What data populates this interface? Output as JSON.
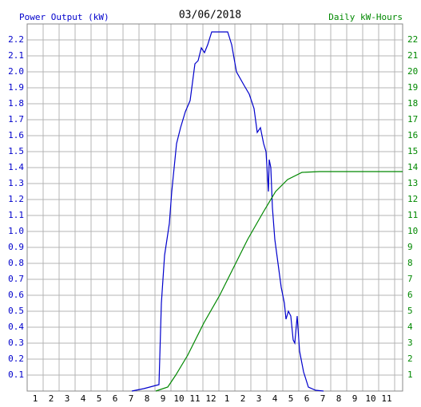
{
  "chart_data": {
    "type": "line",
    "title": "03/06/2018",
    "y_label": "Power Output (kW)",
    "y2_label": "Daily kW-Hours",
    "xlim": [
      0.5,
      24
    ],
    "xticks": [
      1,
      2,
      3,
      4,
      5,
      6,
      7,
      8,
      9,
      10,
      11,
      {
        "value": 12,
        "label": "12"
      },
      {
        "value": 13,
        "label": "1"
      },
      {
        "value": 14,
        "label": "2"
      },
      {
        "value": 15,
        "label": "3"
      },
      {
        "value": 16,
        "label": "4"
      },
      {
        "value": 17,
        "label": "5"
      },
      {
        "value": 18,
        "label": "6"
      },
      {
        "value": 19,
        "label": "7"
      },
      {
        "value": 20,
        "label": "8"
      },
      {
        "value": 21,
        "label": "9"
      },
      {
        "value": 22,
        "label": "10"
      },
      {
        "value": 23,
        "label": "11"
      }
    ],
    "ylim": [
      0,
      2.3
    ],
    "yticks": [
      0.1,
      0.2,
      0.3,
      0.4,
      0.5,
      0.6,
      0.7,
      0.8,
      0.9,
      {
        "value": 1,
        "label": "1.0"
      },
      1.1,
      1.2,
      1.3,
      1.4,
      1.5,
      1.6,
      1.7,
      1.8,
      1.9,
      {
        "value": 2,
        "label": "2.0"
      },
      2.1,
      2.2
    ],
    "y2lim": [
      0,
      23
    ],
    "y2ticks": [
      1,
      2,
      3,
      4,
      5,
      6,
      7,
      8,
      9,
      10,
      11,
      12,
      13,
      14,
      15,
      16,
      17,
      18,
      19,
      20,
      21,
      22
    ],
    "grid": true,
    "series": [
      {
        "color": "#0000cc",
        "x": [
          7.05,
          7.8,
          8.55,
          8.75,
          8.9,
          9.1,
          9.4,
          9.55,
          9.7,
          9.85,
          10.1,
          10.4,
          10.7,
          11.0,
          11.2,
          11.4,
          11.6,
          11.8,
          12.05,
          13.05,
          13.3,
          13.6,
          14.05,
          14.4,
          14.7,
          14.9,
          15.1,
          15.3,
          15.45,
          15.6,
          15.65,
          15.75,
          15.85,
          16.0,
          16.2,
          16.4,
          16.6,
          16.7,
          16.85,
          17.0,
          17.15,
          17.25,
          17.4,
          17.55,
          17.8,
          18.1,
          18.55,
          19.05
        ],
        "values": [
          0,
          0.015,
          0.035,
          0.04,
          0.55,
          0.85,
          1.05,
          1.25,
          1.4,
          1.55,
          1.65,
          1.75,
          1.82,
          2.05,
          2.07,
          2.15,
          2.12,
          2.17,
          2.25,
          2.25,
          2.17,
          2.0,
          1.92,
          1.86,
          1.77,
          1.62,
          1.65,
          1.55,
          1.5,
          1.25,
          1.45,
          1.4,
          1.15,
          0.95,
          0.8,
          0.65,
          0.55,
          0.45,
          0.5,
          0.47,
          0.32,
          0.3,
          0.47,
          0.25,
          0.12,
          0.025,
          0.005,
          0
        ]
      },
      {
        "color": "#008800",
        "axis": "y2",
        "x": [
          8.55,
          9.3,
          9.8,
          10.55,
          11.55,
          12.55,
          13.3,
          14.3,
          15.3,
          16.05,
          16.8,
          17.7,
          18.8,
          24
        ],
        "values": [
          0,
          0.25,
          1,
          2.25,
          4.25,
          6,
          7.5,
          9.5,
          11.25,
          12.5,
          13.25,
          13.7,
          13.75,
          13.75
        ]
      }
    ]
  }
}
